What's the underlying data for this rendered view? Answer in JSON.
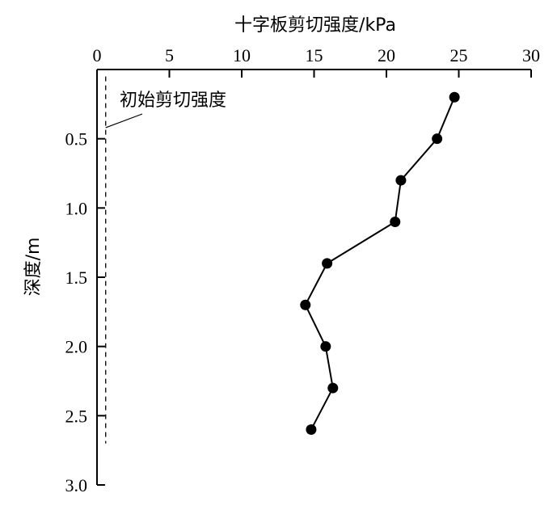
{
  "chart_data": {
    "type": "line",
    "xlabel": "十字板剪切强度/kPa",
    "ylabel": "深度/m",
    "xlim": [
      0,
      30
    ],
    "ylim": [
      0,
      3.0
    ],
    "x_axis_position": "top",
    "y_axis_inverted": true,
    "xticks": [
      0,
      5,
      10,
      15,
      20,
      25,
      30
    ],
    "xtick_labels": [
      "0",
      "5",
      "10",
      "15",
      "20",
      "25",
      "30"
    ],
    "yticks": [
      0.5,
      1.0,
      1.5,
      2.0,
      2.5,
      3.0
    ],
    "ytick_labels": [
      "0.5",
      "1.0",
      "1.5",
      "2.0",
      "2.5",
      "3.0"
    ],
    "grid": false,
    "series": [
      {
        "points": [
          {
            "x": 24.7,
            "y": 0.2
          },
          {
            "x": 23.5,
            "y": 0.5
          },
          {
            "x": 21.0,
            "y": 0.8
          },
          {
            "x": 20.6,
            "y": 1.1
          },
          {
            "x": 15.9,
            "y": 1.4
          },
          {
            "x": 14.4,
            "y": 1.7
          },
          {
            "x": 15.8,
            "y": 2.0
          },
          {
            "x": 16.3,
            "y": 2.3
          },
          {
            "x": 14.8,
            "y": 2.6
          }
        ],
        "color": "#000000",
        "marker": "filled-circle"
      }
    ],
    "reference_line": {
      "x": 0.6,
      "y_range": [
        0.05,
        2.7
      ],
      "style": "dashed",
      "label": "初始剪切强度"
    }
  }
}
